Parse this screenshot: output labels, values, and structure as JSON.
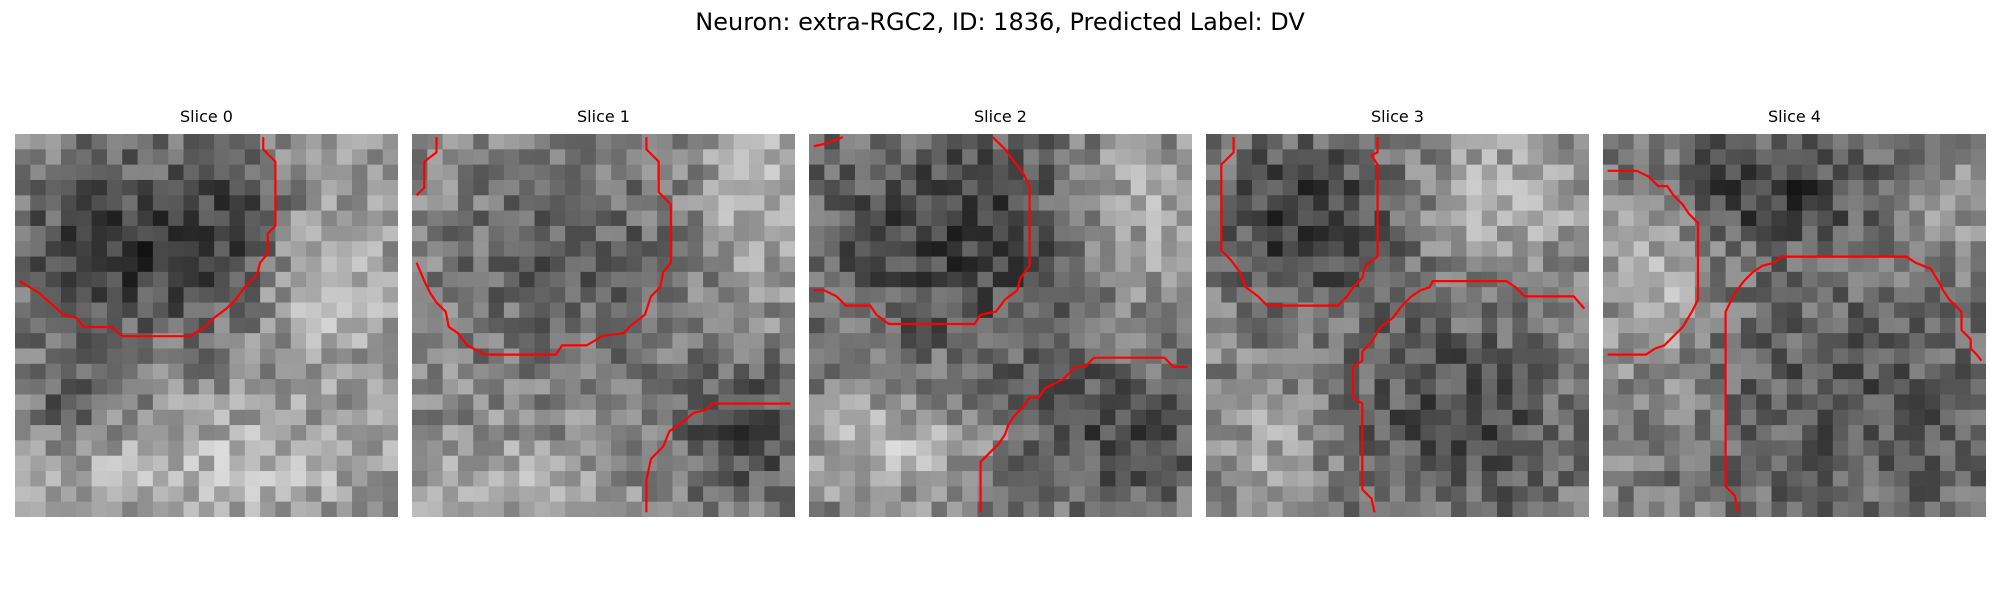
{
  "figure": {
    "title": "Neuron: extra-RGC2, ID: 1836, Predicted Label: DV"
  },
  "colors": {
    "contour": "#ff0000",
    "background": "#ffffff"
  },
  "panels": [
    {
      "label": "Slice 0"
    },
    {
      "label": "Slice 1"
    },
    {
      "label": "Slice 2"
    },
    {
      "label": "Slice 3"
    },
    {
      "label": "Slice 4"
    }
  ]
}
